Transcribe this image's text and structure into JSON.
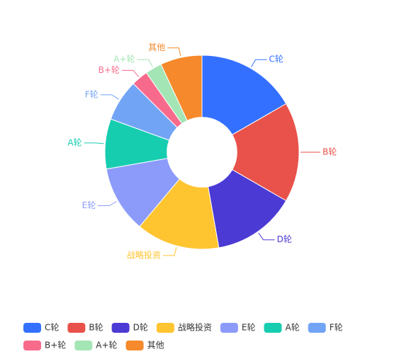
{
  "chart_data": {
    "type": "pie",
    "inner_radius_ratio": 0.36,
    "categories": [
      "C轮",
      "B轮",
      "D轮",
      "战略投资",
      "E轮",
      "A轮",
      "F轮",
      "B+轮",
      "A+轮",
      "其他"
    ],
    "values": [
      12,
      12,
      10,
      10,
      8,
      6,
      5,
      2,
      2,
      5
    ],
    "colors": [
      "#3370FF",
      "#E8524A",
      "#4B3AD4",
      "#FFC530",
      "#8C9BFA",
      "#17CDB0",
      "#72A4F6",
      "#F76A8C",
      "#A4E5B5",
      "#F5892B"
    ],
    "legend": "bottom"
  }
}
